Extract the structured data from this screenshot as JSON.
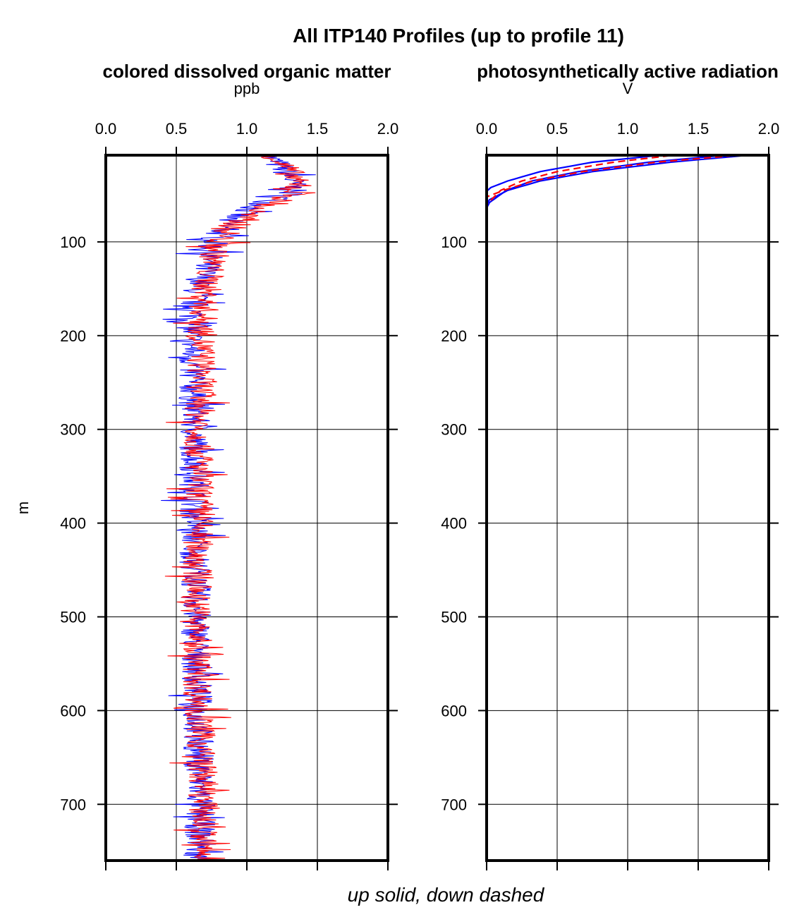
{
  "title": "All ITP140 Profiles (up to profile 11)",
  "footer": "up solid, down dashed",
  "ylabel": "m",
  "colors": {
    "up": "#0000ff",
    "down": "#ff0000",
    "grid": "#000000"
  },
  "chart_data": [
    {
      "type": "line",
      "title": "colored dissolved organic matter",
      "xlabel": "ppb",
      "xlim": [
        0,
        2
      ],
      "xticks": [
        "0.0",
        "0.5",
        "1.0",
        "1.5",
        "2.0"
      ],
      "ylim": [
        760,
        7.5
      ],
      "yticks": [
        "100",
        "200",
        "300",
        "400",
        "500",
        "600",
        "700"
      ],
      "grid": true,
      "series": [
        {
          "style": "up solid",
          "depth": [
            8,
            15,
            25,
            40,
            50,
            60,
            75,
            100,
            130,
            160,
            200,
            250,
            300,
            400,
            500,
            600,
            700,
            760
          ],
          "values": [
            1.15,
            1.2,
            1.28,
            1.33,
            1.3,
            1.1,
            0.88,
            0.76,
            0.7,
            0.63,
            0.6,
            0.62,
            0.63,
            0.63,
            0.64,
            0.65,
            0.67,
            0.66
          ]
        },
        {
          "style": "down dashed",
          "depth": [
            8,
            15,
            25,
            40,
            50,
            60,
            75,
            100,
            130,
            160,
            200,
            250,
            300,
            400,
            500,
            600,
            700,
            760
          ],
          "values": [
            1.2,
            1.24,
            1.3,
            1.35,
            1.33,
            1.15,
            0.95,
            0.8,
            0.74,
            0.7,
            0.68,
            0.68,
            0.66,
            0.66,
            0.64,
            0.66,
            0.7,
            0.68
          ]
        }
      ]
    },
    {
      "type": "line",
      "title": "photosynthetically active radiation",
      "xlabel": "V",
      "xlim": [
        0,
        2
      ],
      "xticks": [
        "0.0",
        "0.5",
        "1.0",
        "1.5",
        "2.0"
      ],
      "ylim": [
        760,
        7.5
      ],
      "yticks": [
        "100",
        "200",
        "300",
        "400",
        "500",
        "600",
        "700"
      ],
      "grid": true,
      "series": [
        {
          "style": "up solid",
          "depth": [
            8,
            15,
            25,
            35,
            45,
            55,
            60,
            760
          ],
          "values": [
            1.82,
            1.3,
            0.75,
            0.38,
            0.15,
            0.02,
            0.0,
            0.0
          ]
        },
        {
          "style": "up solid",
          "depth": [
            8,
            15,
            25,
            35,
            42,
            46,
            760
          ],
          "values": [
            1.2,
            0.75,
            0.38,
            0.15,
            0.03,
            0.0,
            0.0
          ]
        },
        {
          "style": "up solid",
          "depth": [
            8,
            15,
            25,
            35,
            45,
            58,
            64,
            760
          ],
          "values": [
            1.65,
            1.15,
            0.65,
            0.32,
            0.14,
            0.02,
            0.0,
            0.0
          ]
        },
        {
          "style": "down dashed",
          "depth": [
            8,
            15,
            25,
            35,
            45,
            52,
            760
          ],
          "values": [
            1.75,
            1.2,
            0.68,
            0.33,
            0.12,
            0.0,
            0.0
          ]
        },
        {
          "style": "down dashed",
          "depth": [
            8,
            15,
            25,
            35,
            45,
            60,
            760
          ],
          "values": [
            1.3,
            0.9,
            0.5,
            0.25,
            0.1,
            0.0,
            0.0
          ]
        }
      ]
    }
  ]
}
